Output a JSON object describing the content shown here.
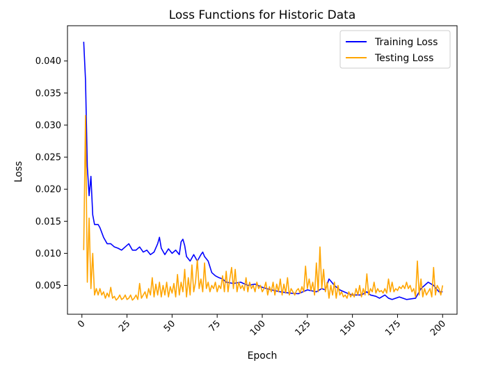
{
  "chart_data": {
    "type": "line",
    "title": "Loss Functions for Historic Data",
    "xlabel": "Epoch",
    "ylabel": "Loss",
    "xlim": [
      -8,
      208
    ],
    "ylim": [
      0.0005,
      0.0455
    ],
    "xticks": [
      0,
      25,
      50,
      75,
      100,
      125,
      150,
      175,
      200
    ],
    "xtick_labels": [
      "0",
      "25",
      "50",
      "75",
      "100",
      "125",
      "150",
      "175",
      "200"
    ],
    "yticks": [
      0.005,
      0.01,
      0.015,
      0.02,
      0.025,
      0.03,
      0.035,
      0.04
    ],
    "ytick_labels": [
      "0.005",
      "0.010",
      "0.015",
      "0.020",
      "0.025",
      "0.030",
      "0.035",
      "0.040"
    ],
    "x_tick_rotation_deg": 45,
    "grid": false,
    "legend_position": "top-right",
    "series": [
      {
        "name": "Training Loss",
        "color": "#0000ff",
        "points": [
          [
            1,
            0.043
          ],
          [
            2,
            0.037
          ],
          [
            3,
            0.0235
          ],
          [
            4,
            0.019
          ],
          [
            5,
            0.022
          ],
          [
            6,
            0.016
          ],
          [
            7,
            0.0145
          ],
          [
            9,
            0.0145
          ],
          [
            10,
            0.014
          ],
          [
            12,
            0.0125
          ],
          [
            14,
            0.0115
          ],
          [
            16,
            0.0115
          ],
          [
            18,
            0.011
          ],
          [
            20,
            0.0108
          ],
          [
            22,
            0.0105
          ],
          [
            24,
            0.011
          ],
          [
            26,
            0.0115
          ],
          [
            28,
            0.0105
          ],
          [
            30,
            0.0105
          ],
          [
            32,
            0.011
          ],
          [
            34,
            0.0102
          ],
          [
            36,
            0.0105
          ],
          [
            38,
            0.0098
          ],
          [
            40,
            0.0102
          ],
          [
            42,
            0.0115
          ],
          [
            43,
            0.0125
          ],
          [
            44,
            0.0108
          ],
          [
            46,
            0.0098
          ],
          [
            48,
            0.0107
          ],
          [
            50,
            0.01
          ],
          [
            52,
            0.0105
          ],
          [
            54,
            0.0098
          ],
          [
            55,
            0.0118
          ],
          [
            56,
            0.0122
          ],
          [
            57,
            0.0112
          ],
          [
            58,
            0.0095
          ],
          [
            60,
            0.0088
          ],
          [
            62,
            0.0098
          ],
          [
            64,
            0.0088
          ],
          [
            66,
            0.0098
          ],
          [
            67,
            0.0102
          ],
          [
            68,
            0.0095
          ],
          [
            70,
            0.0088
          ],
          [
            72,
            0.007
          ],
          [
            74,
            0.0065
          ],
          [
            76,
            0.0062
          ],
          [
            78,
            0.006
          ],
          [
            80,
            0.0055
          ],
          [
            84,
            0.0053
          ],
          [
            88,
            0.0055
          ],
          [
            92,
            0.005
          ],
          [
            96,
            0.0052
          ],
          [
            100,
            0.0047
          ],
          [
            105,
            0.0043
          ],
          [
            110,
            0.004
          ],
          [
            115,
            0.0038
          ],
          [
            120,
            0.0037
          ],
          [
            125,
            0.0043
          ],
          [
            130,
            0.004
          ],
          [
            133,
            0.0045
          ],
          [
            135,
            0.0043
          ],
          [
            137,
            0.006
          ],
          [
            140,
            0.005
          ],
          [
            143,
            0.0043
          ],
          [
            147,
            0.0038
          ],
          [
            150,
            0.0035
          ],
          [
            155,
            0.0035
          ],
          [
            158,
            0.004
          ],
          [
            160,
            0.0035
          ],
          [
            163,
            0.0033
          ],
          [
            165,
            0.003
          ],
          [
            168,
            0.0035
          ],
          [
            170,
            0.003
          ],
          [
            172,
            0.0028
          ],
          [
            176,
            0.0032
          ],
          [
            180,
            0.0028
          ],
          [
            185,
            0.003
          ],
          [
            188,
            0.0045
          ],
          [
            192,
            0.0055
          ],
          [
            195,
            0.005
          ],
          [
            198,
            0.004
          ],
          [
            200,
            0.004
          ]
        ]
      },
      {
        "name": "Testing Loss",
        "color": "#ffa500",
        "points": [
          [
            1,
            0.0105
          ],
          [
            2,
            0.0315
          ],
          [
            3,
            0.0055
          ],
          [
            4,
            0.0155
          ],
          [
            5,
            0.0045
          ],
          [
            6,
            0.01
          ],
          [
            7,
            0.0035
          ],
          [
            8,
            0.0045
          ],
          [
            9,
            0.0035
          ],
          [
            10,
            0.0045
          ],
          [
            11,
            0.0035
          ],
          [
            12,
            0.004
          ],
          [
            13,
            0.003
          ],
          [
            14,
            0.0038
          ],
          [
            15,
            0.0032
          ],
          [
            16,
            0.0047
          ],
          [
            17,
            0.003
          ],
          [
            18,
            0.0033
          ],
          [
            19,
            0.0027
          ],
          [
            20,
            0.003
          ],
          [
            21,
            0.0035
          ],
          [
            22,
            0.0028
          ],
          [
            23,
            0.003
          ],
          [
            24,
            0.0035
          ],
          [
            25,
            0.0028
          ],
          [
            26,
            0.003
          ],
          [
            27,
            0.0035
          ],
          [
            28,
            0.0027
          ],
          [
            29,
            0.003
          ],
          [
            30,
            0.0035
          ],
          [
            31,
            0.0028
          ],
          [
            32,
            0.0053
          ],
          [
            33,
            0.003
          ],
          [
            34,
            0.0035
          ],
          [
            35,
            0.004
          ],
          [
            36,
            0.003
          ],
          [
            37,
            0.0045
          ],
          [
            38,
            0.0035
          ],
          [
            39,
            0.0062
          ],
          [
            40,
            0.0032
          ],
          [
            41,
            0.0052
          ],
          [
            42,
            0.0035
          ],
          [
            43,
            0.0055
          ],
          [
            44,
            0.0032
          ],
          [
            45,
            0.005
          ],
          [
            46,
            0.0035
          ],
          [
            47,
            0.0055
          ],
          [
            48,
            0.0032
          ],
          [
            49,
            0.0048
          ],
          [
            50,
            0.0038
          ],
          [
            51,
            0.0053
          ],
          [
            52,
            0.0032
          ],
          [
            53,
            0.0067
          ],
          [
            54,
            0.0035
          ],
          [
            55,
            0.0055
          ],
          [
            56,
            0.004
          ],
          [
            57,
            0.0075
          ],
          [
            58,
            0.0032
          ],
          [
            59,
            0.0062
          ],
          [
            60,
            0.0035
          ],
          [
            61,
            0.0082
          ],
          [
            62,
            0.004
          ],
          [
            63,
            0.0055
          ],
          [
            64,
            0.009
          ],
          [
            65,
            0.0045
          ],
          [
            66,
            0.006
          ],
          [
            67,
            0.004
          ],
          [
            68,
            0.0085
          ],
          [
            69,
            0.0045
          ],
          [
            70,
            0.0055
          ],
          [
            71,
            0.004
          ],
          [
            72,
            0.005
          ],
          [
            73,
            0.0045
          ],
          [
            74,
            0.0055
          ],
          [
            75,
            0.004
          ],
          [
            76,
            0.005
          ],
          [
            77,
            0.0045
          ],
          [
            78,
            0.0065
          ],
          [
            79,
            0.004
          ],
          [
            80,
            0.0072
          ],
          [
            81,
            0.004
          ],
          [
            82,
            0.006
          ],
          [
            83,
            0.0078
          ],
          [
            84,
            0.0045
          ],
          [
            85,
            0.0075
          ],
          [
            86,
            0.004
          ],
          [
            87,
            0.0055
          ],
          [
            88,
            0.0045
          ],
          [
            89,
            0.005
          ],
          [
            90,
            0.0042
          ],
          [
            91,
            0.0062
          ],
          [
            92,
            0.004
          ],
          [
            93,
            0.0055
          ],
          [
            94,
            0.0045
          ],
          [
            95,
            0.005
          ],
          [
            96,
            0.004
          ],
          [
            97,
            0.0055
          ],
          [
            98,
            0.0045
          ],
          [
            99,
            0.005
          ],
          [
            100,
            0.004
          ],
          [
            101,
            0.0045
          ],
          [
            102,
            0.0055
          ],
          [
            103,
            0.0035
          ],
          [
            104,
            0.0048
          ],
          [
            105,
            0.004
          ],
          [
            106,
            0.0055
          ],
          [
            107,
            0.0035
          ],
          [
            108,
            0.0052
          ],
          [
            109,
            0.004
          ],
          [
            110,
            0.006
          ],
          [
            111,
            0.0035
          ],
          [
            112,
            0.0052
          ],
          [
            113,
            0.0038
          ],
          [
            114,
            0.0062
          ],
          [
            115,
            0.0035
          ],
          [
            116,
            0.0045
          ],
          [
            117,
            0.004
          ],
          [
            118,
            0.0035
          ],
          [
            119,
            0.0042
          ],
          [
            120,
            0.0045
          ],
          [
            121,
            0.0038
          ],
          [
            122,
            0.0048
          ],
          [
            123,
            0.004
          ],
          [
            124,
            0.008
          ],
          [
            125,
            0.0045
          ],
          [
            126,
            0.006
          ],
          [
            127,
            0.0042
          ],
          [
            128,
            0.0055
          ],
          [
            129,
            0.0035
          ],
          [
            130,
            0.0085
          ],
          [
            131,
            0.004
          ],
          [
            132,
            0.011
          ],
          [
            133,
            0.0045
          ],
          [
            134,
            0.0075
          ],
          [
            135,
            0.004
          ],
          [
            136,
            0.0055
          ],
          [
            137,
            0.003
          ],
          [
            138,
            0.005
          ],
          [
            139,
            0.0035
          ],
          [
            140,
            0.0055
          ],
          [
            141,
            0.003
          ],
          [
            142,
            0.005
          ],
          [
            143,
            0.0035
          ],
          [
            144,
            0.004
          ],
          [
            145,
            0.0032
          ],
          [
            146,
            0.0035
          ],
          [
            147,
            0.003
          ],
          [
            148,
            0.004
          ],
          [
            149,
            0.0032
          ],
          [
            150,
            0.0038
          ],
          [
            151,
            0.0032
          ],
          [
            152,
            0.0045
          ],
          [
            153,
            0.0035
          ],
          [
            154,
            0.005
          ],
          [
            155,
            0.0032
          ],
          [
            156,
            0.0045
          ],
          [
            157,
            0.0035
          ],
          [
            158,
            0.0068
          ],
          [
            159,
            0.0035
          ],
          [
            160,
            0.0045
          ],
          [
            161,
            0.004
          ],
          [
            162,
            0.0055
          ],
          [
            163,
            0.0038
          ],
          [
            164,
            0.0045
          ],
          [
            165,
            0.004
          ],
          [
            166,
            0.0042
          ],
          [
            167,
            0.0038
          ],
          [
            168,
            0.0045
          ],
          [
            169,
            0.0038
          ],
          [
            170,
            0.006
          ],
          [
            171,
            0.004
          ],
          [
            172,
            0.0055
          ],
          [
            173,
            0.004
          ],
          [
            174,
            0.0045
          ],
          [
            175,
            0.0042
          ],
          [
            176,
            0.0048
          ],
          [
            177,
            0.0045
          ],
          [
            178,
            0.005
          ],
          [
            179,
            0.0045
          ],
          [
            180,
            0.0055
          ],
          [
            181,
            0.0045
          ],
          [
            182,
            0.005
          ],
          [
            183,
            0.004
          ],
          [
            184,
            0.0045
          ],
          [
            185,
            0.0032
          ],
          [
            186,
            0.0088
          ],
          [
            187,
            0.0035
          ],
          [
            188,
            0.006
          ],
          [
            189,
            0.0032
          ],
          [
            190,
            0.0045
          ],
          [
            191,
            0.0035
          ],
          [
            192,
            0.004
          ],
          [
            193,
            0.0045
          ],
          [
            194,
            0.0032
          ],
          [
            195,
            0.0078
          ],
          [
            196,
            0.0035
          ],
          [
            197,
            0.005
          ],
          [
            198,
            0.0045
          ],
          [
            199,
            0.0035
          ],
          [
            200,
            0.005
          ]
        ]
      }
    ]
  }
}
